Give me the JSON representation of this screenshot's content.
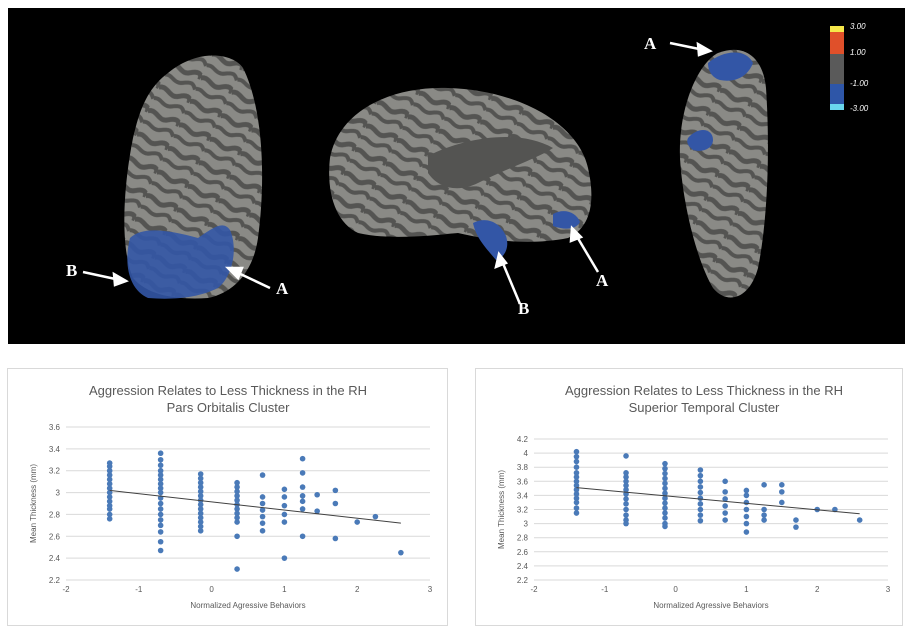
{
  "brain_panel": {
    "callouts": [
      "A",
      "B",
      "B",
      "A",
      "A"
    ],
    "colorbar": {
      "labels": [
        "3.00",
        "1.00",
        "-1.00",
        "-3.00"
      ],
      "colors": [
        "#f6e84a",
        "#e0502a",
        "#5a5a5a",
        "#2e56a8",
        "#6ad6ee"
      ]
    },
    "colors": {
      "background": "#000000",
      "cortex_gyri": "#8a8a86",
      "cortex_sulci": "#545452",
      "cluster": "#3356a6",
      "arrow": "#ffffff"
    }
  },
  "colors": {
    "points": "#4a7ab8",
    "trendline": "#404040",
    "axis_text": "#595959",
    "grid": "#d9d9d9"
  },
  "chart_data": [
    {
      "type": "scatter",
      "title": "Aggression Relates to Less Thickness in the RH",
      "subtitle": "Pars Orbitalis Cluster",
      "xlabel": "Normalized Agressive Behaviors",
      "ylabel": "Mean Thickness (mm)",
      "xlim": [
        -2,
        3
      ],
      "ylim": [
        2.2,
        3.6
      ],
      "x_ticks": [
        "-2",
        "-1",
        "0",
        "1",
        "2",
        "3"
      ],
      "y_ticks": [
        "2.2",
        "2.4",
        "2.6",
        "2.8",
        "3",
        "3.2",
        "3.4",
        "3.6"
      ],
      "grid": true,
      "trendline": {
        "x": [
          -1.4,
          2.6
        ],
        "y": [
          3.02,
          2.72
        ]
      },
      "points": [
        [
          -1.4,
          2.76
        ],
        [
          -1.4,
          2.8
        ],
        [
          -1.4,
          2.85
        ],
        [
          -1.4,
          2.88
        ],
        [
          -1.4,
          2.92
        ],
        [
          -1.4,
          2.96
        ],
        [
          -1.4,
          3.0
        ],
        [
          -1.4,
          3.04
        ],
        [
          -1.4,
          3.08
        ],
        [
          -1.4,
          3.12
        ],
        [
          -1.4,
          3.16
        ],
        [
          -1.4,
          3.2
        ],
        [
          -1.4,
          3.24
        ],
        [
          -1.4,
          3.27
        ],
        [
          -0.7,
          2.47
        ],
        [
          -0.7,
          2.55
        ],
        [
          -0.7,
          2.64
        ],
        [
          -0.7,
          2.7
        ],
        [
          -0.7,
          2.75
        ],
        [
          -0.7,
          2.8
        ],
        [
          -0.7,
          2.85
        ],
        [
          -0.7,
          2.9
        ],
        [
          -0.7,
          2.95
        ],
        [
          -0.7,
          3.0
        ],
        [
          -0.7,
          3.04
        ],
        [
          -0.7,
          3.08
        ],
        [
          -0.7,
          3.12
        ],
        [
          -0.7,
          3.16
        ],
        [
          -0.7,
          3.2
        ],
        [
          -0.7,
          3.25
        ],
        [
          -0.7,
          3.3
        ],
        [
          -0.7,
          3.36
        ],
        [
          -0.15,
          2.65
        ],
        [
          -0.15,
          2.69
        ],
        [
          -0.15,
          2.73
        ],
        [
          -0.15,
          2.77
        ],
        [
          -0.15,
          2.81
        ],
        [
          -0.15,
          2.85
        ],
        [
          -0.15,
          2.89
        ],
        [
          -0.15,
          2.93
        ],
        [
          -0.15,
          2.97
        ],
        [
          -0.15,
          3.01
        ],
        [
          -0.15,
          3.05
        ],
        [
          -0.15,
          3.09
        ],
        [
          -0.15,
          3.13
        ],
        [
          -0.15,
          3.17
        ],
        [
          0.35,
          2.3
        ],
        [
          0.35,
          2.6
        ],
        [
          0.35,
          2.73
        ],
        [
          0.35,
          2.77
        ],
        [
          0.35,
          2.81
        ],
        [
          0.35,
          2.85
        ],
        [
          0.35,
          2.89
        ],
        [
          0.35,
          2.93
        ],
        [
          0.35,
          2.97
        ],
        [
          0.35,
          3.01
        ],
        [
          0.35,
          3.05
        ],
        [
          0.35,
          3.09
        ],
        [
          0.7,
          2.65
        ],
        [
          0.7,
          2.72
        ],
        [
          0.7,
          2.78
        ],
        [
          0.7,
          2.84
        ],
        [
          0.7,
          2.9
        ],
        [
          0.7,
          2.96
        ],
        [
          0.7,
          3.16
        ],
        [
          1.0,
          2.4
        ],
        [
          1.0,
          2.73
        ],
        [
          1.0,
          2.8
        ],
        [
          1.0,
          2.88
        ],
        [
          1.0,
          2.96
        ],
        [
          1.0,
          3.03
        ],
        [
          1.25,
          2.6
        ],
        [
          1.25,
          2.85
        ],
        [
          1.25,
          2.92
        ],
        [
          1.25,
          2.97
        ],
        [
          1.25,
          3.05
        ],
        [
          1.25,
          3.18
        ],
        [
          1.25,
          3.31
        ],
        [
          1.45,
          2.83
        ],
        [
          1.45,
          2.98
        ],
        [
          1.7,
          2.58
        ],
        [
          1.7,
          2.9
        ],
        [
          1.7,
          3.02
        ],
        [
          2.0,
          2.73
        ],
        [
          2.25,
          2.78
        ],
        [
          2.6,
          2.45
        ]
      ]
    },
    {
      "type": "scatter",
      "title": "Aggression Relates to Less Thickness in the RH",
      "subtitle": "Superior Temporal Cluster",
      "xlabel": "Normalized Agressive Behaviors",
      "ylabel": "Mean Thickness (mm)",
      "xlim": [
        -2,
        3
      ],
      "ylim": [
        2.2,
        4.2
      ],
      "x_ticks": [
        "-2",
        "-1",
        "0",
        "1",
        "2",
        "3"
      ],
      "y_ticks": [
        "2.2",
        "2.4",
        "2.6",
        "2.8",
        "3",
        "3.2",
        "3.4",
        "3.6",
        "3.8",
        "4",
        "4.2"
      ],
      "grid": true,
      "trendline": {
        "x": [
          -1.4,
          2.6
        ],
        "y": [
          3.51,
          3.14
        ]
      },
      "points": [
        [
          -1.4,
          3.15
        ],
        [
          -1.4,
          3.22
        ],
        [
          -1.4,
          3.3
        ],
        [
          -1.4,
          3.36
        ],
        [
          -1.4,
          3.42
        ],
        [
          -1.4,
          3.48
        ],
        [
          -1.4,
          3.54
        ],
        [
          -1.4,
          3.6
        ],
        [
          -1.4,
          3.66
        ],
        [
          -1.4,
          3.72
        ],
        [
          -1.4,
          3.8
        ],
        [
          -1.4,
          3.88
        ],
        [
          -1.4,
          3.95
        ],
        [
          -1.4,
          4.02
        ],
        [
          -0.7,
          3.0
        ],
        [
          -0.7,
          3.05
        ],
        [
          -0.7,
          3.12
        ],
        [
          -0.7,
          3.2
        ],
        [
          -0.7,
          3.28
        ],
        [
          -0.7,
          3.35
        ],
        [
          -0.7,
          3.42
        ],
        [
          -0.7,
          3.48
        ],
        [
          -0.7,
          3.54
        ],
        [
          -0.7,
          3.6
        ],
        [
          -0.7,
          3.66
        ],
        [
          -0.7,
          3.72
        ],
        [
          -0.7,
          3.96
        ],
        [
          -0.15,
          2.96
        ],
        [
          -0.15,
          3.0
        ],
        [
          -0.15,
          3.08
        ],
        [
          -0.15,
          3.15
        ],
        [
          -0.15,
          3.22
        ],
        [
          -0.15,
          3.29
        ],
        [
          -0.15,
          3.36
        ],
        [
          -0.15,
          3.43
        ],
        [
          -0.15,
          3.5
        ],
        [
          -0.15,
          3.57
        ],
        [
          -0.15,
          3.64
        ],
        [
          -0.15,
          3.71
        ],
        [
          -0.15,
          3.78
        ],
        [
          -0.15,
          3.85
        ],
        [
          0.35,
          3.04
        ],
        [
          0.35,
          3.12
        ],
        [
          0.35,
          3.2
        ],
        [
          0.35,
          3.28
        ],
        [
          0.35,
          3.36
        ],
        [
          0.35,
          3.44
        ],
        [
          0.35,
          3.52
        ],
        [
          0.35,
          3.6
        ],
        [
          0.35,
          3.68
        ],
        [
          0.35,
          3.76
        ],
        [
          0.7,
          3.05
        ],
        [
          0.7,
          3.15
        ],
        [
          0.7,
          3.25
        ],
        [
          0.7,
          3.35
        ],
        [
          0.7,
          3.45
        ],
        [
          0.7,
          3.6
        ],
        [
          1.0,
          2.88
        ],
        [
          1.0,
          3.0
        ],
        [
          1.0,
          3.1
        ],
        [
          1.0,
          3.2
        ],
        [
          1.0,
          3.3
        ],
        [
          1.0,
          3.4
        ],
        [
          1.0,
          3.47
        ],
        [
          1.25,
          3.05
        ],
        [
          1.25,
          3.12
        ],
        [
          1.25,
          3.2
        ],
        [
          1.25,
          3.55
        ],
        [
          1.5,
          3.3
        ],
        [
          1.5,
          3.45
        ],
        [
          1.5,
          3.55
        ],
        [
          1.7,
          2.95
        ],
        [
          1.7,
          3.05
        ],
        [
          2.0,
          3.2
        ],
        [
          2.25,
          3.2
        ],
        [
          2.6,
          3.05
        ]
      ]
    }
  ]
}
